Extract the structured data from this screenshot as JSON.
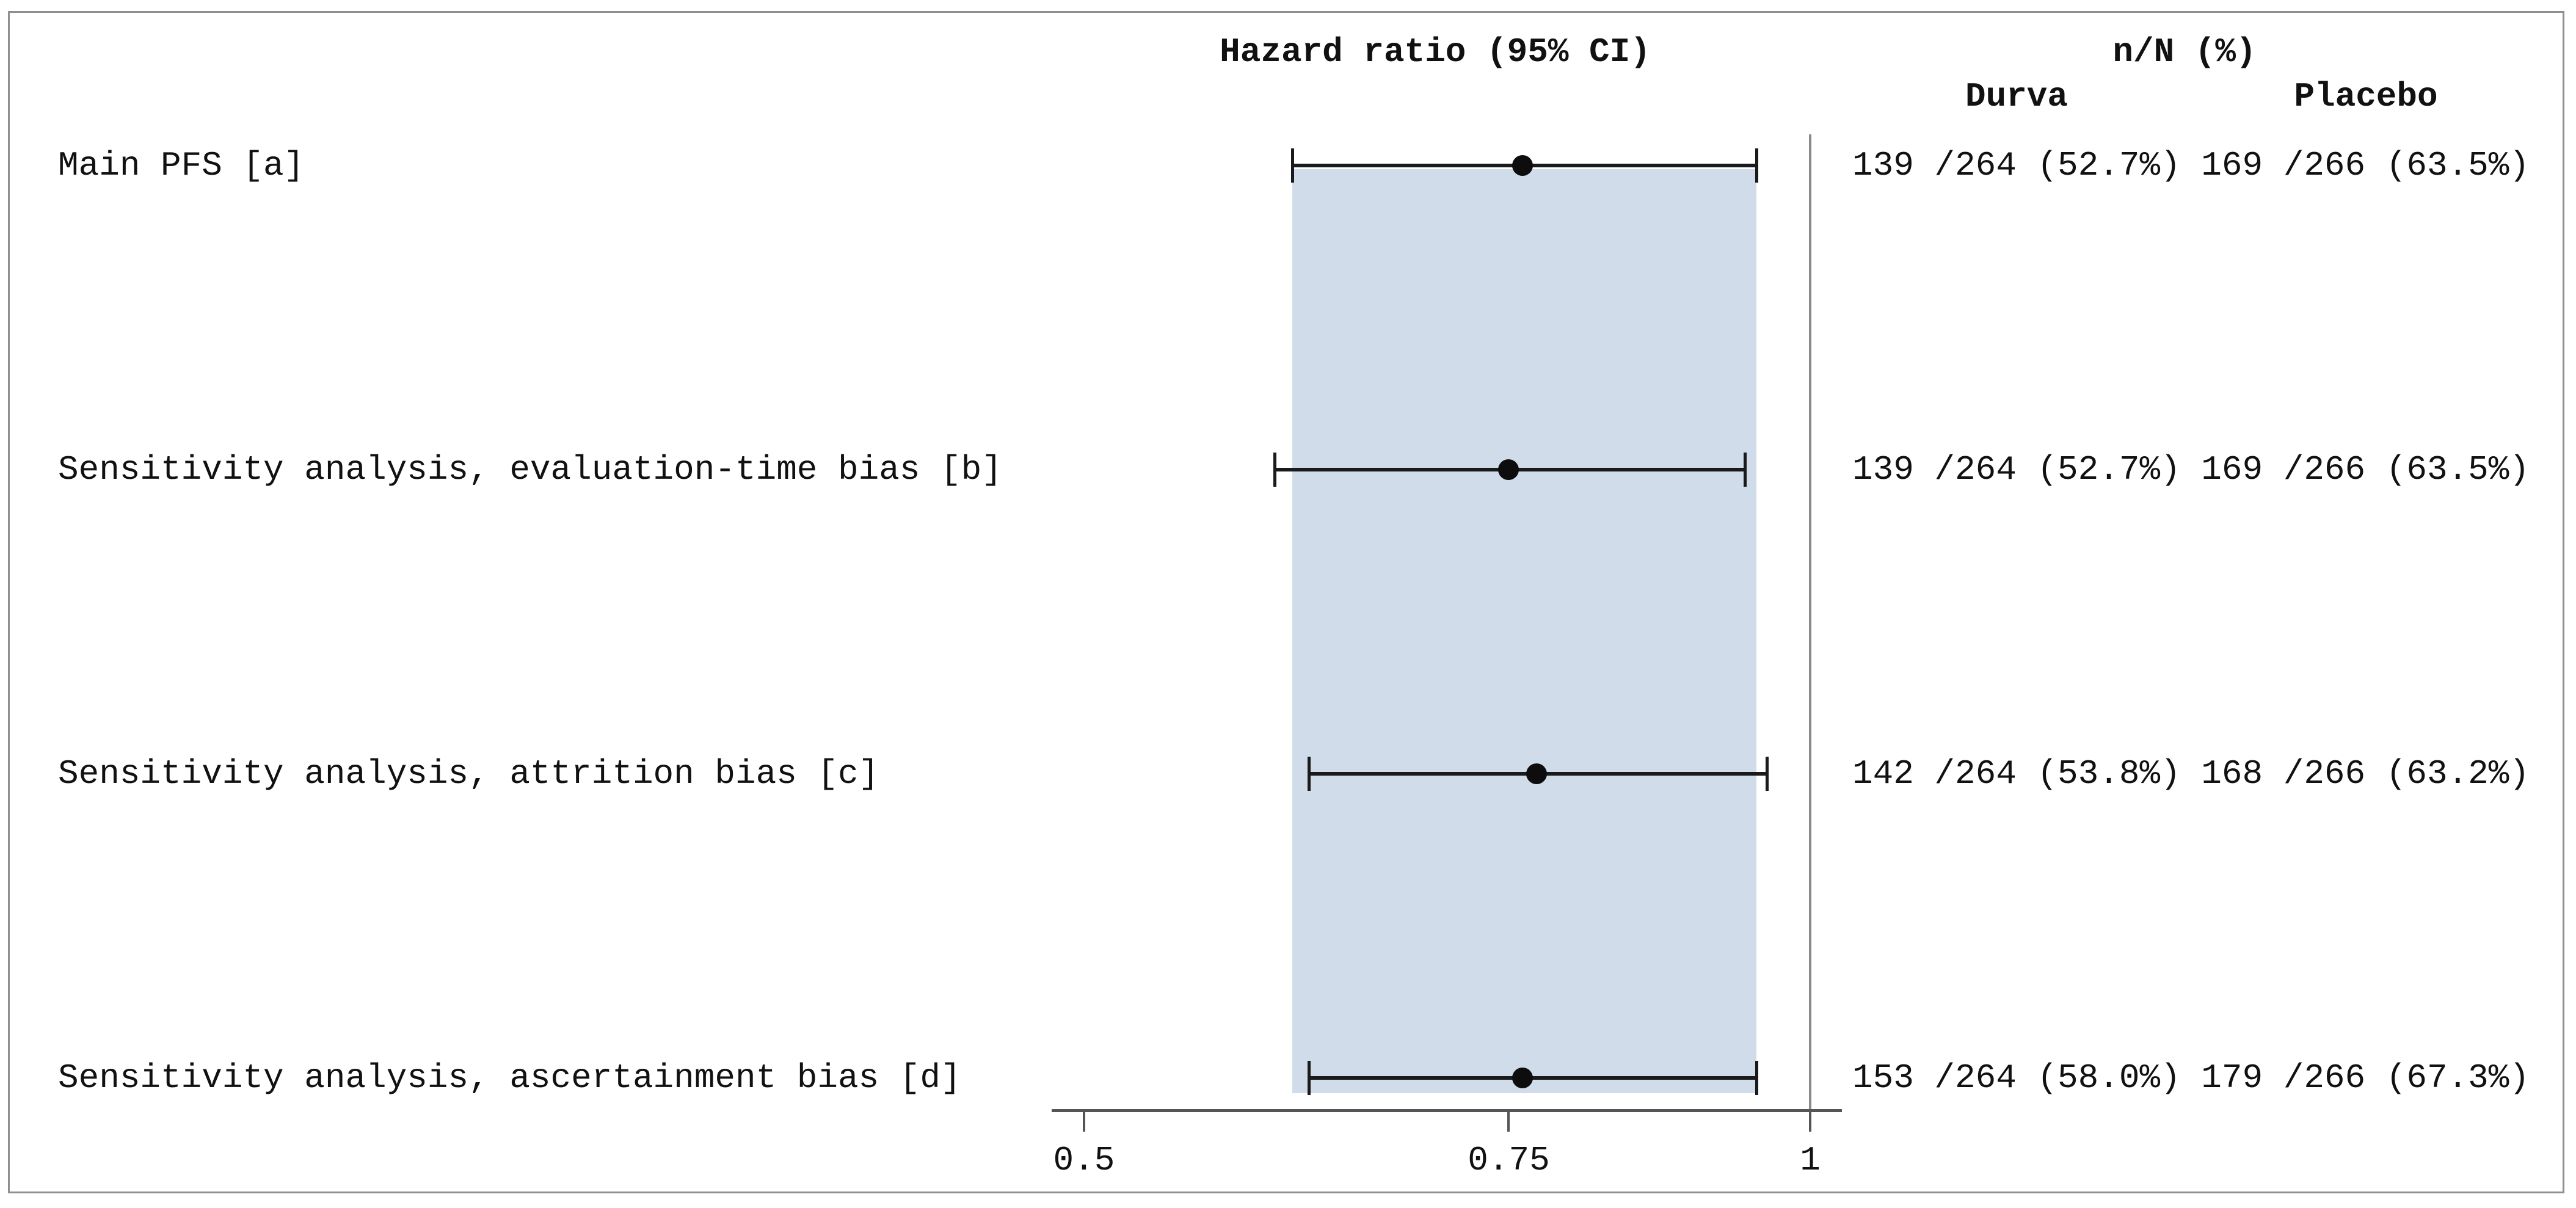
{
  "figure": {
    "hr_header": "Hazard ratio (95% CI)",
    "nn_header": "n/N (%)",
    "durva_header": "Durva",
    "placebo_header": "Placebo"
  },
  "chart_data": {
    "type": "forest",
    "title": "Hazard ratio (95% CI)",
    "x_axis": {
      "scale": "log",
      "ticks": [
        0.5,
        0.75,
        1
      ],
      "tick_labels": [
        "0.5",
        "0.75",
        "1"
      ],
      "range": [
        0.48,
        1.03
      ],
      "reference_line": 1,
      "grid": false
    },
    "shaded_band": {
      "from": 0.61,
      "to": 0.95
    },
    "rows": [
      {
        "label": "Main PFS [a]",
        "hr": 0.76,
        "ci_low": 0.61,
        "ci_high": 0.95,
        "durva_nN": "139 /264 (52.7%)",
        "placebo_nN": "169 /266 (63.5%)"
      },
      {
        "label": "Sensitivity analysis, evaluation-time bias [b]",
        "hr": 0.75,
        "ci_low": 0.6,
        "ci_high": 0.94,
        "durva_nN": "139 /264 (52.7%)",
        "placebo_nN": "169 /266 (63.5%)"
      },
      {
        "label": "Sensitivity analysis, attrition bias [c]",
        "hr": 0.77,
        "ci_low": 0.62,
        "ci_high": 0.96,
        "durva_nN": "142 /264 (53.8%)",
        "placebo_nN": "168 /266 (63.2%)"
      },
      {
        "label": "Sensitivity analysis, ascertainment bias [d]",
        "hr": 0.76,
        "ci_low": 0.62,
        "ci_high": 0.95,
        "durva_nN": "153 /264 (58.0%)",
        "placebo_nN": "179 /266 (67.3%)"
      }
    ],
    "colors": {
      "band": "#d0dcea",
      "marker": "#0d0d0d",
      "ci_line": "#1a1a1a",
      "axis": "#555555",
      "ref_line": "#8a8a8a",
      "text": "#111111",
      "frame_border": "#8f8f8f"
    }
  }
}
